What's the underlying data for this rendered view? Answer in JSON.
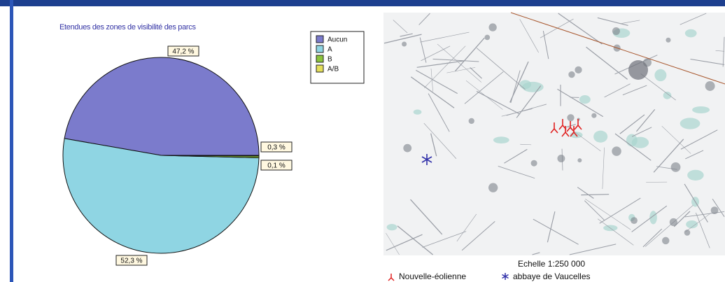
{
  "chart_data": {
    "type": "pie",
    "title": "Etendues des zones de visibilité des parcs",
    "categories": [
      "Aucun",
      "A",
      "B",
      "A/B"
    ],
    "values": [
      47.2,
      52.3,
      0.3,
      0.1
    ],
    "value_labels": [
      "47,2 %",
      "52,3 %",
      "0,3 %",
      "0,1 %"
    ],
    "colors": [
      "#7b7bcc",
      "#8fd5e3",
      "#8cc43c",
      "#e4df5a"
    ],
    "legend": "top-right"
  },
  "map": {
    "scale": "Echelle 1:250 000",
    "legend": [
      "Nouvelle-éolienne",
      "abbaye de Vaucelles"
    ]
  }
}
